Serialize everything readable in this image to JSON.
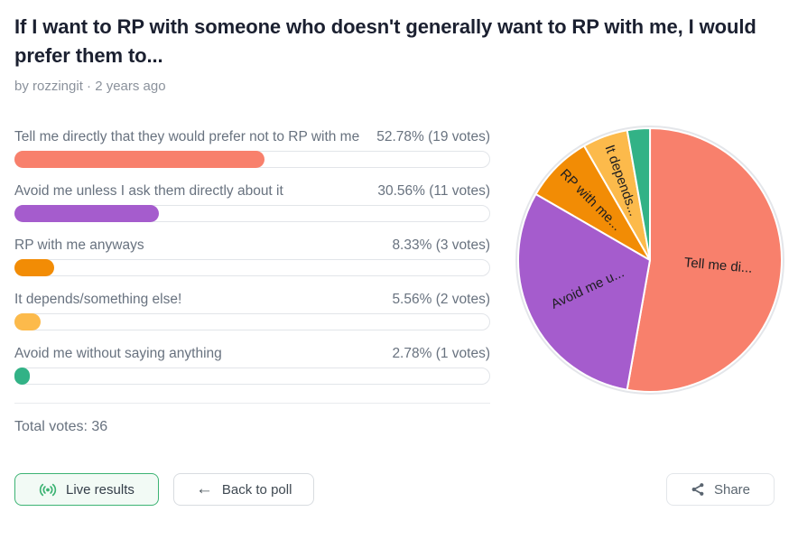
{
  "page": {
    "title": "If I want to RP with someone who doesn't generally want to RP with me, I would prefer them to...",
    "byline": "by rozzingit · 2 years ago",
    "author": "rozzingit",
    "posted": "2 years ago",
    "total_votes_label": "Total votes: 36",
    "total_votes": 36
  },
  "poll": {
    "options": [
      {
        "label": "Tell me directly that they would prefer not to RP with me",
        "stat": "52.78% (19 votes)",
        "percent": 52.78,
        "votes": 19,
        "color": "#f8806c"
      },
      {
        "label": "Avoid me unless I ask them directly about it",
        "stat": "30.56% (11 votes)",
        "percent": 30.56,
        "votes": 11,
        "color": "#a55ccd"
      },
      {
        "label": "RP with me anyways",
        "stat": "8.33% (3 votes)",
        "percent": 8.33,
        "votes": 3,
        "color": "#f28c05"
      },
      {
        "label": "It depends/something else!",
        "stat": "5.56% (2 votes)",
        "percent": 5.56,
        "votes": 2,
        "color": "#fcba4b"
      },
      {
        "label": "Avoid me without saying anything",
        "stat": "2.78% (1 votes)",
        "percent": 2.78,
        "votes": 1,
        "color": "#32b286"
      }
    ]
  },
  "buttons": {
    "live_results": "Live results",
    "back_to_poll": "Back to poll",
    "share": "Share"
  },
  "icons": {
    "live": "live-signal-icon",
    "back_arrow_glyph": "←",
    "share": "share-nodes-icon"
  },
  "colors": {
    "accent_green": "#3cb373",
    "live_button_bg": "#f2faf5",
    "title_text": "#1b2030",
    "muted_text": "#68727f",
    "byline_text": "#8b929c",
    "track_border": "#e2e5e9",
    "divider": "#e9ebee",
    "pie_ring": "#e4e6ea",
    "pie_label_text": "#1d1d20",
    "share_icon": "#5a6570"
  },
  "chart_data": {
    "type": "pie",
    "title": "If I want to RP with someone who doesn't generally want to RP with me, I would prefer them to...",
    "categories": [
      "Tell me directly that they would prefer not to RP with me",
      "Avoid me unless I ask them directly about it",
      "RP with me anyways",
      "It depends/something else!",
      "Avoid me without saying anything"
    ],
    "values": [
      52.78,
      30.56,
      8.33,
      5.56,
      2.78
    ],
    "votes": [
      19,
      11,
      3,
      2,
      1
    ],
    "total_votes": 36,
    "colors": [
      "#f8806c",
      "#a55ccd",
      "#f28c05",
      "#fcba4b",
      "#32b286"
    ],
    "slice_labels": [
      "Tell me di...",
      "Avoid me u...",
      "RP with me...",
      "It depends...",
      ""
    ],
    "start": "12 o'clock, clockwise",
    "legend": "none",
    "slice_border_color": "#ffffff"
  }
}
